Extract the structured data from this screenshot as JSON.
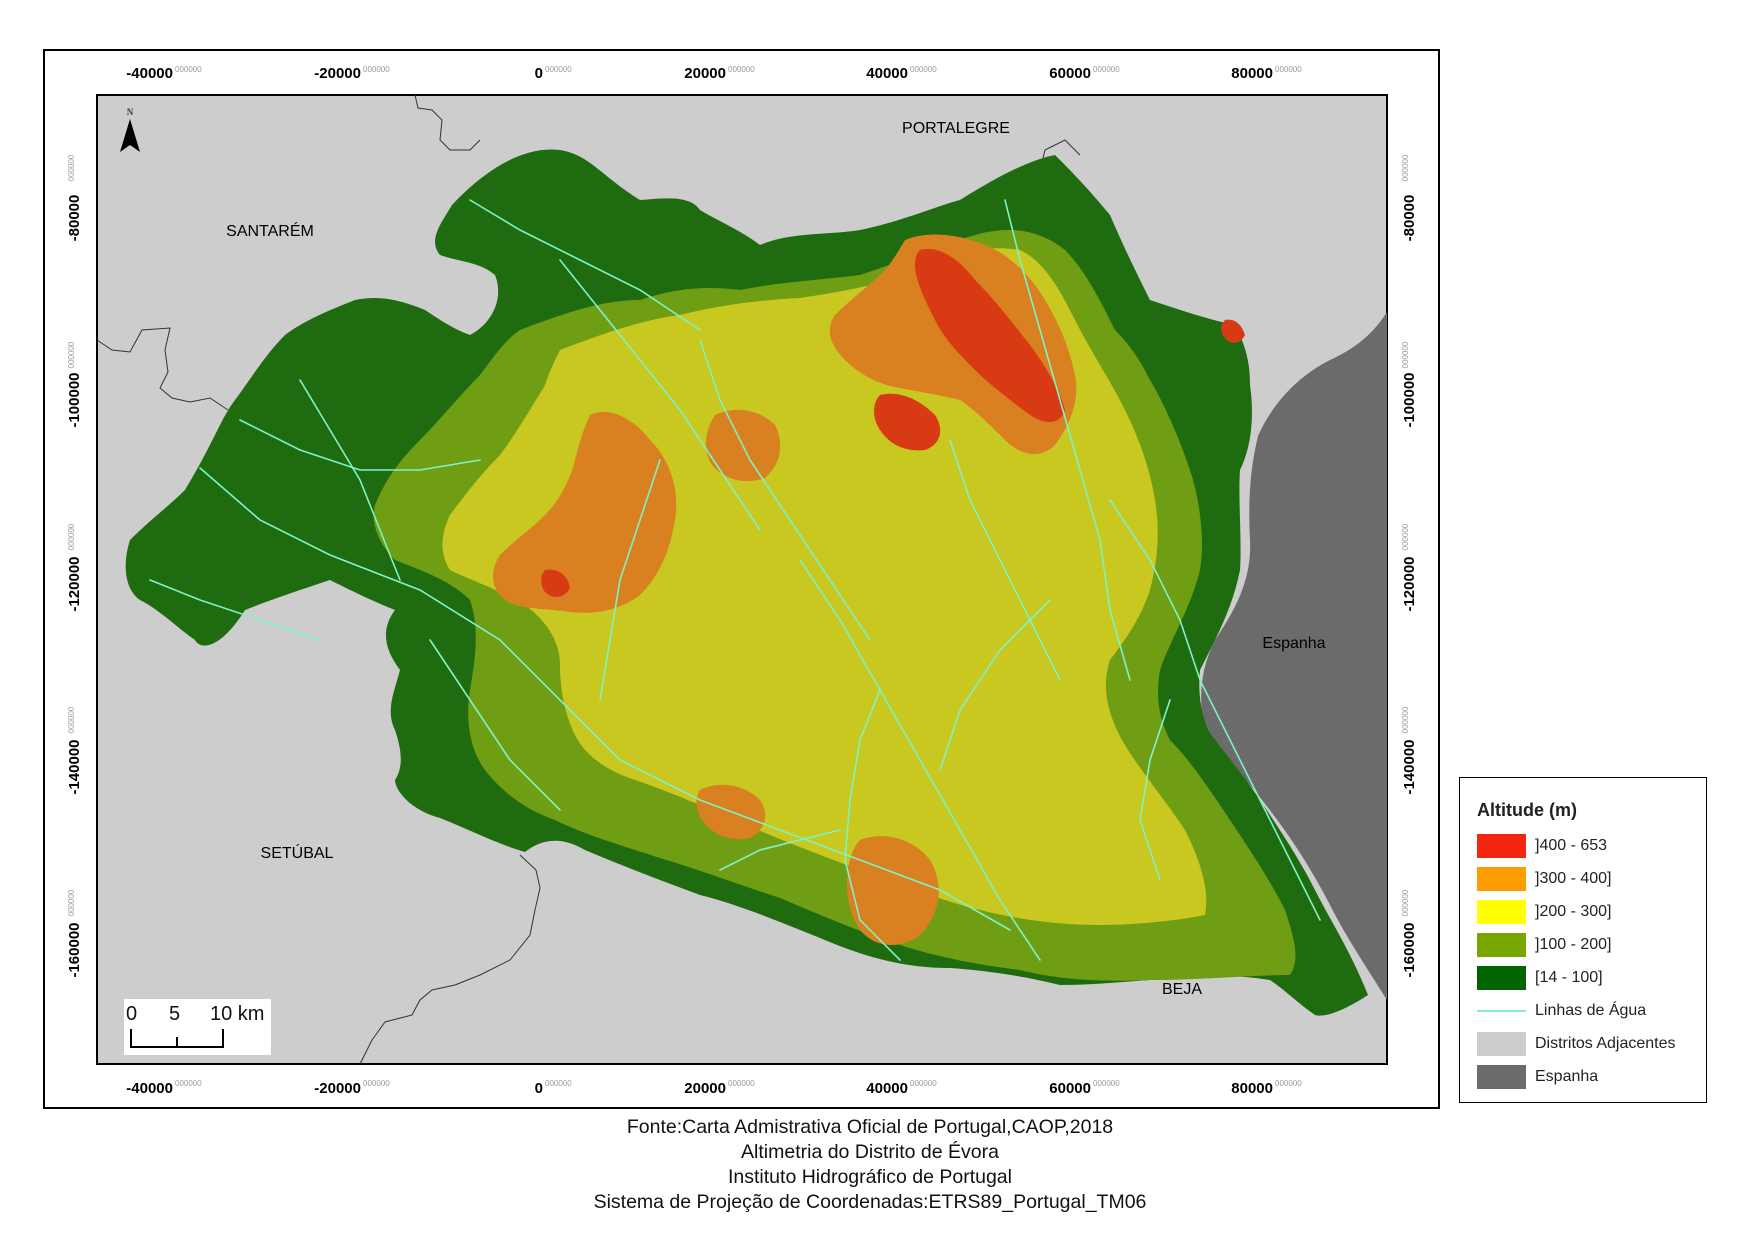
{
  "map": {
    "x_ticks": [
      "-40000",
      "-20000",
      "0",
      "20000",
      "40000",
      "60000",
      "80000"
    ],
    "x_tick_decimal": "000000",
    "y_ticks": [
      "-80000",
      "-100000",
      "-120000",
      "-140000",
      "-160000"
    ],
    "y_tick_decimal": "000000",
    "north_label": "N",
    "regions": {
      "portalegre": "PORTALEGRE",
      "santarem": "SANTARÉM",
      "setubal": "SETÚBAL",
      "beja": "BEJA",
      "espanha": "Espanha"
    },
    "scale_bar": {
      "values": [
        "0",
        "5",
        "10 km"
      ]
    }
  },
  "legend": {
    "title": "Altitude (m)",
    "items": [
      {
        "label": "]400 - 653",
        "color": "#f2250f"
      },
      {
        "label": "]300 - 400]",
        "color": "#ff9c00"
      },
      {
        "label": "]200 - 300]",
        "color": "#ffff00"
      },
      {
        "label": "]100 - 200]",
        "color": "#78a800"
      },
      {
        "label": "[14 - 100]",
        "color": "#006400"
      },
      {
        "label": "Linhas de Água",
        "color": "#7ff2c6",
        "kind": "line"
      },
      {
        "label": "Distritos Adjacentes",
        "color": "#cdcdcd"
      },
      {
        "label": "Espanha",
        "color": "#6b6b6b"
      }
    ]
  },
  "caption": {
    "lines": [
      "Fonte:Carta Admistrativa Oficial de Portugal,CAOP,2018",
      "Altimetria do Distrito de Évora",
      "Instituto Hidrográfico de Portugal",
      "Sistema de Projeção de Coordenadas:ETRS89_Portugal_TM06"
    ]
  },
  "colors": {
    "district_bg": "#cdcdcd",
    "spain": "#6b6b6b",
    "rivers": "#7ff2c6"
  }
}
